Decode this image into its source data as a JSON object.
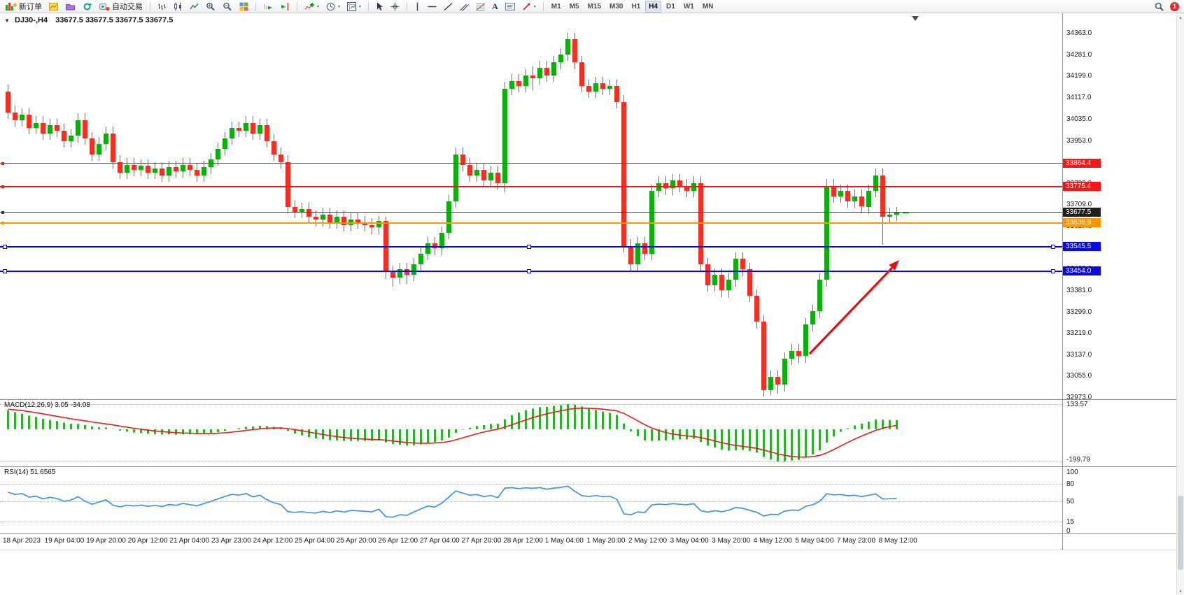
{
  "toolbar": {
    "new_order_label": "新订单",
    "autotrading_label": "自动交易",
    "timeframes": [
      "M1",
      "M5",
      "M15",
      "M30",
      "H1",
      "H4",
      "D1",
      "W1",
      "MN"
    ],
    "active_timeframe": "H4",
    "text_tool_label": "A",
    "notification_count": "1"
  },
  "chart": {
    "symbol_period": "DJ30-,H4",
    "quotes": "33677.5 33677.5 33677.5 33677.5"
  },
  "colors": {
    "up": "#0eae0e",
    "down": "#ee3124"
  },
  "price_axis": {
    "ticks": [
      "34363.0",
      "34281.0",
      "34199.0",
      "34117.0",
      "34035.0",
      "33953.0",
      "33871.0",
      "33789.0",
      "33709.0",
      "33627.0",
      "33545.0",
      "33463.0",
      "33381.0",
      "33299.0",
      "33219.0",
      "33137.0",
      "33055.0",
      "32973.0"
    ]
  },
  "hlines": [
    {
      "price": 33864.4,
      "label": "33864.4",
      "color": "#f01818",
      "badge": "#f01818",
      "width": 1,
      "handles": false
    },
    {
      "price": 33775.4,
      "label": "33775.4",
      "color": "#f01818",
      "badge": "#f01818",
      "width": 2,
      "handles": false
    },
    {
      "price": 33677.5,
      "label": "33677.5",
      "color": "#3c3c3c",
      "badge": "#1f1f1f",
      "width": 1,
      "handles": false
    },
    {
      "price": 33636.9,
      "label": "33636.9",
      "color": "#ff9800",
      "badge": "#ff9800",
      "width": 2,
      "handles": false
    },
    {
      "price": 33545.5,
      "label": "33545.5",
      "color": "#0a0ae0",
      "badge": "#0a0ae0",
      "width": 2,
      "handles": true
    },
    {
      "price": 33454.0,
      "label": "33454.0",
      "color": "#0a0ae0",
      "badge": "#0a0ae0",
      "width": 2,
      "handles": true
    }
  ],
  "macd": {
    "label": "MACD(12,26,9) 3.05 -34.08",
    "axis_max": "133.57",
    "axis_min": "-199.79",
    "bar_color": "#2fae2f",
    "signal_color": "#e02020"
  },
  "rsi": {
    "label": "RSI(14) 51.6565",
    "levels": [
      "100",
      "80",
      "50",
      "15",
      "0"
    ],
    "dotted_levels": [
      "80",
      "50",
      "15"
    ],
    "line_color": "#3f96d9"
  },
  "time_axis": {
    "labels": [
      "18 Apr 2023",
      "19 Apr 04:00",
      "19 Apr 20:00",
      "20 Apr 12:00",
      "21 Apr 04:00",
      "23 Apr 23:00",
      "24 Apr 12:00",
      "25 Apr 04:00",
      "25 Apr 20:00",
      "26 Apr 12:00",
      "27 Apr 04:00",
      "27 Apr 20:00",
      "28 Apr 12:00",
      "1 May 04:00",
      "1 May 20:00",
      "2 May 12:00",
      "3 May 04:00",
      "3 May 20:00",
      "4 May 12:00",
      "5 May 04:00",
      "7 May 23:00",
      "8 May 12:00"
    ]
  },
  "annotation": {
    "arrow_color": "#e01212"
  },
  "chart_data": {
    "type": "candlestick",
    "symbol": "DJ30-",
    "timeframe": "H4",
    "indicator_seed_closes": [
      33500,
      33520,
      33560,
      33540,
      33600,
      33640,
      33620,
      33680,
      33720,
      33700,
      33760,
      33800,
      33780,
      33840,
      33880,
      33860,
      33920,
      33960,
      33940,
      34000,
      34040,
      34020,
      34080,
      34120,
      34100,
      34140,
      34160,
      34120,
      34150,
      34140
    ],
    "candles": [
      [
        34140,
        34165,
        34035,
        34060
      ],
      [
        34060,
        34085,
        34005,
        34030
      ],
      [
        34030,
        34075,
        34005,
        34050
      ],
      [
        34050,
        34075,
        33975,
        34000
      ],
      [
        34000,
        34045,
        33975,
        34020
      ],
      [
        34020,
        34045,
        33955,
        33980
      ],
      [
        33980,
        34035,
        33955,
        34010
      ],
      [
        34010,
        34035,
        33965,
        33990
      ],
      [
        33990,
        34015,
        33925,
        33950
      ],
      [
        33950,
        33995,
        33925,
        33970
      ],
      [
        33970,
        34055,
        33945,
        34030
      ],
      [
        34030,
        34055,
        33935,
        33960
      ],
      [
        33960,
        33985,
        33875,
        33900
      ],
      [
        33900,
        33965,
        33875,
        33940
      ],
      [
        33940,
        34005,
        33915,
        33980
      ],
      [
        33980,
        34005,
        33845,
        33870
      ],
      [
        33870,
        33895,
        33805,
        33830
      ],
      [
        33830,
        33885,
        33805,
        33860
      ],
      [
        33860,
        33885,
        33815,
        33840
      ],
      [
        33840,
        33880,
        33815,
        33855
      ],
      [
        33855,
        33880,
        33805,
        33830
      ],
      [
        33830,
        33870,
        33805,
        33845
      ],
      [
        33845,
        33870,
        33795,
        33820
      ],
      [
        33820,
        33875,
        33795,
        33850
      ],
      [
        33850,
        33875,
        33810,
        33835
      ],
      [
        33835,
        33885,
        33810,
        33860
      ],
      [
        33860,
        33885,
        33815,
        33840
      ],
      [
        33840,
        33865,
        33795,
        33820
      ],
      [
        33820,
        33875,
        33795,
        33850
      ],
      [
        33850,
        33905,
        33825,
        33880
      ],
      [
        33880,
        33945,
        33855,
        33920
      ],
      [
        33920,
        33985,
        33895,
        33960
      ],
      [
        33960,
        34025,
        33935,
        34000
      ],
      [
        34000,
        34025,
        33965,
        33990
      ],
      [
        33990,
        34045,
        33965,
        34020
      ],
      [
        34020,
        34045,
        33955,
        33980
      ],
      [
        33980,
        34035,
        33955,
        34010
      ],
      [
        34010,
        34035,
        33925,
        33950
      ],
      [
        33950,
        33975,
        33875,
        33900
      ],
      [
        33900,
        33925,
        33845,
        33870
      ],
      [
        33870,
        33895,
        33675,
        33700
      ],
      [
        33700,
        33725,
        33655,
        33680
      ],
      [
        33680,
        33715,
        33655,
        33690
      ],
      [
        33690,
        33715,
        33635,
        33660
      ],
      [
        33660,
        33685,
        33625,
        33650
      ],
      [
        33650,
        33695,
        33625,
        33670
      ],
      [
        33670,
        33695,
        33615,
        33640
      ],
      [
        33640,
        33685,
        33615,
        33660
      ],
      [
        33660,
        33685,
        33605,
        33630
      ],
      [
        33630,
        33675,
        33605,
        33650
      ],
      [
        33650,
        33675,
        33615,
        33640
      ],
      [
        33640,
        33665,
        33605,
        33630
      ],
      [
        33630,
        33655,
        33595,
        33620
      ],
      [
        33620,
        33665,
        33595,
        33645
      ],
      [
        33645,
        33660,
        33425,
        33450
      ],
      [
        33450,
        33475,
        33395,
        33430
      ],
      [
        33430,
        33485,
        33405,
        33460
      ],
      [
        33460,
        33485,
        33405,
        33440
      ],
      [
        33440,
        33505,
        33415,
        33480
      ],
      [
        33480,
        33545,
        33455,
        33520
      ],
      [
        33520,
        33585,
        33495,
        33560
      ],
      [
        33560,
        33585,
        33515,
        33540
      ],
      [
        33540,
        33625,
        33515,
        33600
      ],
      [
        33600,
        33745,
        33575,
        33720
      ],
      [
        33720,
        33925,
        33695,
        33900
      ],
      [
        33900,
        33925,
        33835,
        33860
      ],
      [
        33860,
        33885,
        33795,
        33820
      ],
      [
        33820,
        33865,
        33795,
        33840
      ],
      [
        33840,
        33865,
        33775,
        33800
      ],
      [
        33800,
        33855,
        33775,
        33830
      ],
      [
        33830,
        33855,
        33765,
        33790
      ],
      [
        33790,
        34175,
        33755,
        34150
      ],
      [
        34150,
        34205,
        34125,
        34180
      ],
      [
        34180,
        34205,
        34135,
        34160
      ],
      [
        34160,
        34225,
        34135,
        34200
      ],
      [
        34200,
        34235,
        34145,
        34190
      ],
      [
        34190,
        34255,
        34165,
        34230
      ],
      [
        34230,
        34255,
        34175,
        34200
      ],
      [
        34200,
        34275,
        34175,
        34250
      ],
      [
        34250,
        34305,
        34225,
        34280
      ],
      [
        34280,
        34363,
        34255,
        34340
      ],
      [
        34340,
        34363,
        34225,
        34250
      ],
      [
        34250,
        34275,
        34135,
        34160
      ],
      [
        34160,
        34185,
        34115,
        34140
      ],
      [
        34140,
        34195,
        34115,
        34170
      ],
      [
        34170,
        34195,
        34125,
        34150
      ],
      [
        34150,
        34185,
        34125,
        34160
      ],
      [
        34160,
        34185,
        34075,
        34100
      ],
      [
        34100,
        34125,
        33525,
        33550
      ],
      [
        33550,
        33575,
        33455,
        33480
      ],
      [
        33480,
        33585,
        33455,
        33560
      ],
      [
        33560,
        33585,
        33495,
        33520
      ],
      [
        33520,
        33785,
        33495,
        33760
      ],
      [
        33760,
        33815,
        33735,
        33790
      ],
      [
        33790,
        33815,
        33745,
        33770
      ],
      [
        33770,
        33825,
        33745,
        33800
      ],
      [
        33800,
        33825,
        33755,
        33780
      ],
      [
        33780,
        33805,
        33735,
        33760
      ],
      [
        33760,
        33815,
        33735,
        33790
      ],
      [
        33790,
        33815,
        33455,
        33480
      ],
      [
        33480,
        33505,
        33375,
        33400
      ],
      [
        33400,
        33465,
        33375,
        33440
      ],
      [
        33440,
        33465,
        33355,
        33380
      ],
      [
        33380,
        33445,
        33355,
        33420
      ],
      [
        33420,
        33525,
        33395,
        33500
      ],
      [
        33500,
        33525,
        33435,
        33460
      ],
      [
        33460,
        33485,
        33335,
        33360
      ],
      [
        33360,
        33385,
        33235,
        33260
      ],
      [
        33260,
        33285,
        32975,
        33000
      ],
      [
        33000,
        33075,
        32980,
        33050
      ],
      [
        33050,
        33075,
        32985,
        33020
      ],
      [
        33020,
        33145,
        32995,
        33120
      ],
      [
        33120,
        33175,
        33095,
        33150
      ],
      [
        33150,
        33175,
        33105,
        33130
      ],
      [
        33130,
        33275,
        33105,
        33250
      ],
      [
        33250,
        33325,
        33225,
        33300
      ],
      [
        33300,
        33445,
        33275,
        33420
      ],
      [
        33420,
        33805,
        33395,
        33780
      ],
      [
        33780,
        33805,
        33715,
        33740
      ],
      [
        33740,
        33785,
        33715,
        33760
      ],
      [
        33760,
        33785,
        33695,
        33720
      ],
      [
        33720,
        33765,
        33695,
        33740
      ],
      [
        33740,
        33765,
        33675,
        33700
      ],
      [
        33700,
        33785,
        33675,
        33760
      ],
      [
        33760,
        33845,
        33735,
        33820
      ],
      [
        33820,
        33845,
        33555,
        33660
      ],
      [
        33660,
        33695,
        33635,
        33670
      ],
      [
        33670,
        33700,
        33645,
        33677.5
      ]
    ]
  }
}
